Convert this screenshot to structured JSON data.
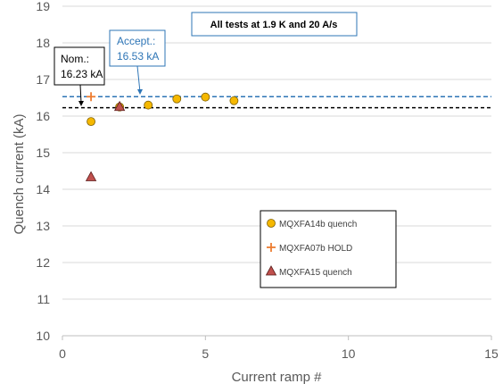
{
  "chart_data": {
    "type": "scatter",
    "title": "All tests at 1.9 K and 20 A/s",
    "xlabel": "Current ramp #",
    "ylabel": "Quench current (kA)",
    "xlim": [
      0,
      15
    ],
    "ylim": [
      10,
      19
    ],
    "x_ticks": [
      "0",
      "5",
      "10",
      "15"
    ],
    "y_ticks": [
      "10",
      "11",
      "12",
      "13",
      "14",
      "15",
      "16",
      "17",
      "18",
      "19"
    ],
    "grid": "horizontal",
    "legend_position": "lower-right",
    "series": [
      {
        "name": "MQXFA14b quench",
        "marker": "circle",
        "color": "#f5b800",
        "points": [
          [
            1,
            15.85
          ],
          [
            2,
            16.25
          ],
          [
            3,
            16.3
          ],
          [
            4,
            16.47
          ],
          [
            5,
            16.52
          ],
          [
            6,
            16.42
          ]
        ]
      },
      {
        "name": "MQXFA07b HOLD",
        "marker": "plus",
        "color": "#ed7d31",
        "points": [
          [
            1,
            16.53
          ]
        ]
      },
      {
        "name": "MQXFA15 quench",
        "marker": "triangle",
        "color": "#c0504d",
        "points": [
          [
            1,
            14.33
          ],
          [
            2,
            16.25
          ]
        ]
      }
    ],
    "reference_lines": [
      {
        "label": "Accept.:\n16.53 kA",
        "label_lines": [
          "Accept.:",
          "16.53 kA"
        ],
        "value": 16.53,
        "color": "#2e75b6",
        "style": "dashed"
      },
      {
        "label": "Nom.:\n16.23 kA",
        "label_lines": [
          "Nom.:",
          "16.23 kA"
        ],
        "value": 16.23,
        "color": "#000000",
        "style": "dashed"
      }
    ]
  }
}
